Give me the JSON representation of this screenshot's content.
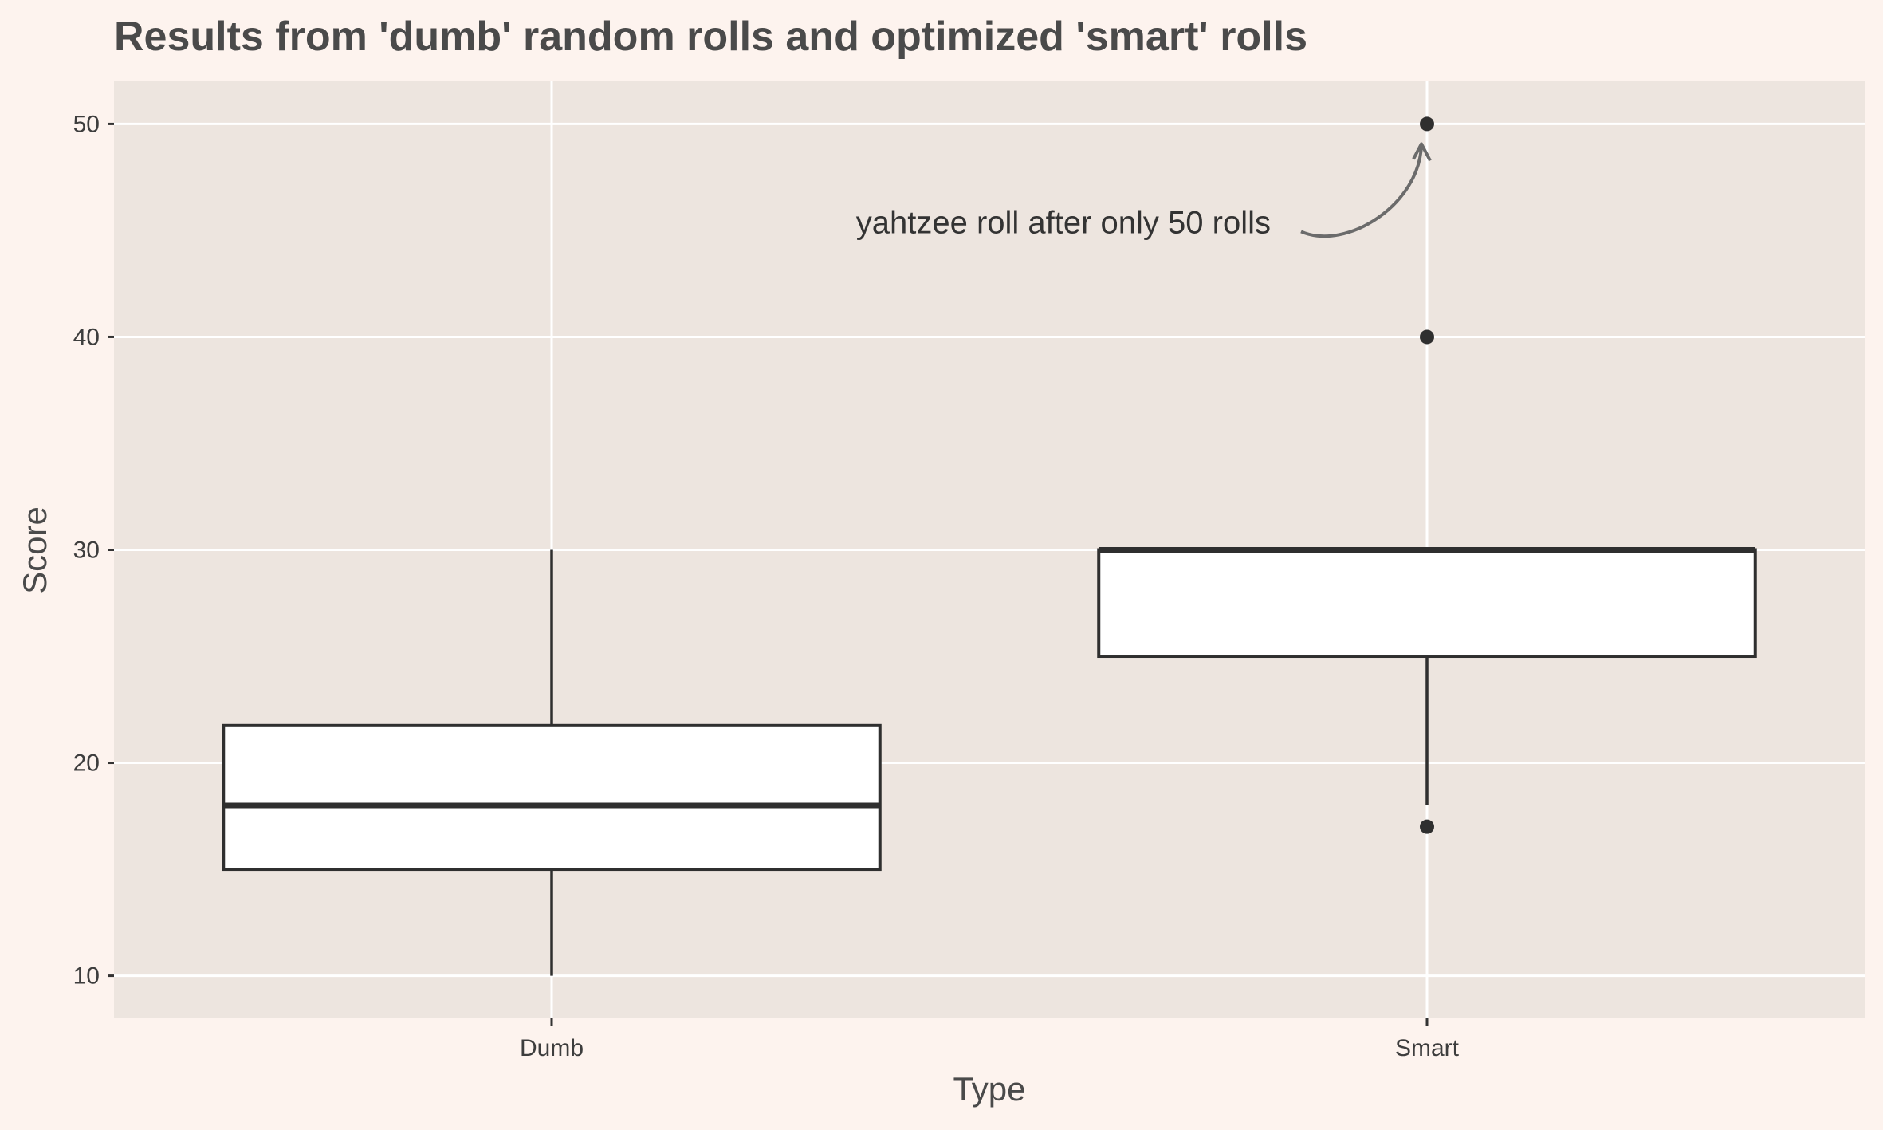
{
  "chart_data": {
    "type": "boxplot",
    "title": "Results from 'dumb' random rolls and optimized 'smart' rolls",
    "xlabel": "Type",
    "ylabel": "Score",
    "ylim": [
      8,
      52
    ],
    "yticks": [
      10,
      20,
      30,
      40,
      50
    ],
    "categories": [
      "Dumb",
      "Smart"
    ],
    "boxes": [
      {
        "category": "Dumb",
        "whisker_low": 10,
        "q1": 15,
        "median": 18,
        "q3": 21.75,
        "whisker_high": 30,
        "outliers": []
      },
      {
        "category": "Smart",
        "whisker_low": 18,
        "q1": 25,
        "median": 30,
        "q3": 30,
        "whisker_high": 30,
        "outliers": [
          17,
          40,
          50
        ]
      }
    ],
    "annotation": {
      "text": "yahtzee roll after only 50 rolls",
      "category": "Smart",
      "target_y": 50
    },
    "grid": true,
    "colors": {
      "page_background": "#fdf3ee",
      "panel_background": "#ede5df",
      "grid": "#ffffff",
      "box_fill": "#ffffff",
      "box_stroke": "#2f2f2f",
      "arrow": "#6b6b6b"
    }
  }
}
